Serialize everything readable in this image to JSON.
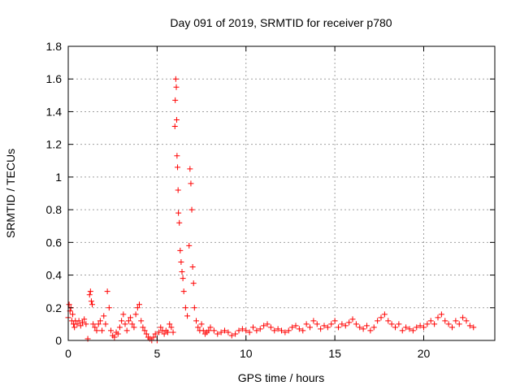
{
  "chart_data": {
    "type": "scatter",
    "title": "Day 091 of 2019, SRMTID for receiver p780",
    "xlabel": "GPS time / hours",
    "ylabel": "SRMTID / TECUs",
    "xlim": [
      0,
      24
    ],
    "ylim": [
      0,
      1.8
    ],
    "xticks": [
      0,
      5,
      10,
      15,
      20
    ],
    "yticks": [
      0,
      0.2,
      0.4,
      0.6,
      0.8,
      1,
      1.2,
      1.4,
      1.6,
      1.8
    ],
    "xtick_labels": [
      "0",
      "5",
      "10",
      "15",
      "20"
    ],
    "ytick_labels": [
      "0",
      "0.2",
      "0.4",
      "0.6",
      "0.8",
      "1",
      "1.2",
      "1.4",
      "1.6",
      "1.8"
    ],
    "grid": true,
    "marker": "plus",
    "color": "#ff0000",
    "series": [
      {
        "x": [
          0.0,
          0.05,
          0.1,
          0.15,
          0.2,
          0.25,
          0.3,
          0.35,
          0.4,
          0.5,
          0.6,
          0.7,
          0.8,
          0.9,
          1.0,
          1.1,
          1.2,
          1.25,
          1.3,
          1.35,
          1.4,
          1.5,
          1.6,
          1.7,
          1.8,
          1.9,
          2.0,
          2.1,
          2.2,
          2.3,
          2.4,
          2.5,
          2.6,
          2.7,
          2.8,
          2.9,
          3.0,
          3.1,
          3.2,
          3.3,
          3.4,
          3.5,
          3.6,
          3.7,
          3.8,
          3.9,
          4.0,
          4.1,
          4.2,
          4.3,
          4.4,
          4.5,
          4.6,
          4.7,
          4.8,
          4.9,
          5.0,
          5.1,
          5.2,
          5.3,
          5.4,
          5.5,
          5.6,
          5.7,
          5.8,
          5.9,
          6.0,
          6.02,
          6.05,
          6.08,
          6.1,
          6.12,
          6.15,
          6.18,
          6.2,
          6.25,
          6.3,
          6.35,
          6.4,
          6.45,
          6.5,
          6.6,
          6.7,
          6.8,
          6.85,
          6.9,
          6.95,
          7.0,
          7.05,
          7.1,
          7.2,
          7.3,
          7.4,
          7.5,
          7.6,
          7.7,
          7.8,
          7.9,
          8.0,
          8.2,
          8.4,
          8.6,
          8.8,
          9.0,
          9.2,
          9.4,
          9.6,
          9.8,
          10.0,
          10.2,
          10.4,
          10.6,
          10.8,
          11.0,
          11.2,
          11.4,
          11.6,
          11.8,
          12.0,
          12.2,
          12.4,
          12.6,
          12.8,
          13.0,
          13.2,
          13.4,
          13.6,
          13.8,
          14.0,
          14.2,
          14.4,
          14.6,
          14.8,
          15.0,
          15.2,
          15.4,
          15.6,
          15.8,
          16.0,
          16.2,
          16.4,
          16.6,
          16.8,
          17.0,
          17.2,
          17.4,
          17.6,
          17.8,
          18.0,
          18.2,
          18.4,
          18.6,
          18.8,
          19.0,
          19.2,
          19.4,
          19.6,
          19.8,
          20.0,
          20.2,
          20.4,
          20.6,
          20.8,
          21.0,
          21.2,
          21.4,
          21.6,
          21.8,
          22.0,
          22.2,
          22.4,
          22.6,
          22.8
        ],
        "y": [
          0.14,
          0.22,
          0.18,
          0.2,
          0.12,
          0.16,
          0.1,
          0.08,
          0.12,
          0.1,
          0.12,
          0.09,
          0.11,
          0.13,
          0.1,
          0.01,
          0.28,
          0.3,
          0.24,
          0.22,
          0.1,
          0.08,
          0.06,
          0.1,
          0.12,
          0.06,
          0.15,
          0.1,
          0.3,
          0.2,
          0.06,
          0.03,
          0.02,
          0.05,
          0.04,
          0.08,
          0.12,
          0.16,
          0.1,
          0.06,
          0.12,
          0.14,
          0.1,
          0.08,
          0.16,
          0.2,
          0.22,
          0.12,
          0.08,
          0.06,
          0.04,
          0.02,
          0.01,
          0.0,
          0.02,
          0.04,
          0.0,
          0.05,
          0.08,
          0.06,
          0.04,
          0.06,
          0.05,
          0.1,
          0.08,
          0.05,
          1.31,
          1.47,
          1.6,
          1.55,
          1.35,
          1.13,
          1.06,
          0.92,
          0.78,
          0.72,
          0.55,
          0.48,
          0.42,
          0.38,
          0.3,
          0.2,
          0.15,
          0.58,
          1.05,
          0.96,
          0.8,
          0.45,
          0.35,
          0.2,
          0.12,
          0.08,
          0.06,
          0.1,
          0.06,
          0.04,
          0.05,
          0.06,
          0.08,
          0.06,
          0.04,
          0.05,
          0.06,
          0.05,
          0.03,
          0.04,
          0.06,
          0.07,
          0.06,
          0.05,
          0.08,
          0.06,
          0.07,
          0.09,
          0.1,
          0.08,
          0.06,
          0.07,
          0.06,
          0.05,
          0.06,
          0.08,
          0.09,
          0.07,
          0.06,
          0.1,
          0.08,
          0.12,
          0.1,
          0.07,
          0.09,
          0.08,
          0.1,
          0.12,
          0.08,
          0.1,
          0.09,
          0.11,
          0.13,
          0.1,
          0.08,
          0.07,
          0.09,
          0.06,
          0.08,
          0.12,
          0.14,
          0.16,
          0.12,
          0.1,
          0.08,
          0.1,
          0.06,
          0.08,
          0.07,
          0.06,
          0.08,
          0.09,
          0.08,
          0.1,
          0.12,
          0.1,
          0.14,
          0.16,
          0.12,
          0.1,
          0.08,
          0.12,
          0.1,
          0.14,
          0.12,
          0.09,
          0.08
        ]
      }
    ]
  }
}
